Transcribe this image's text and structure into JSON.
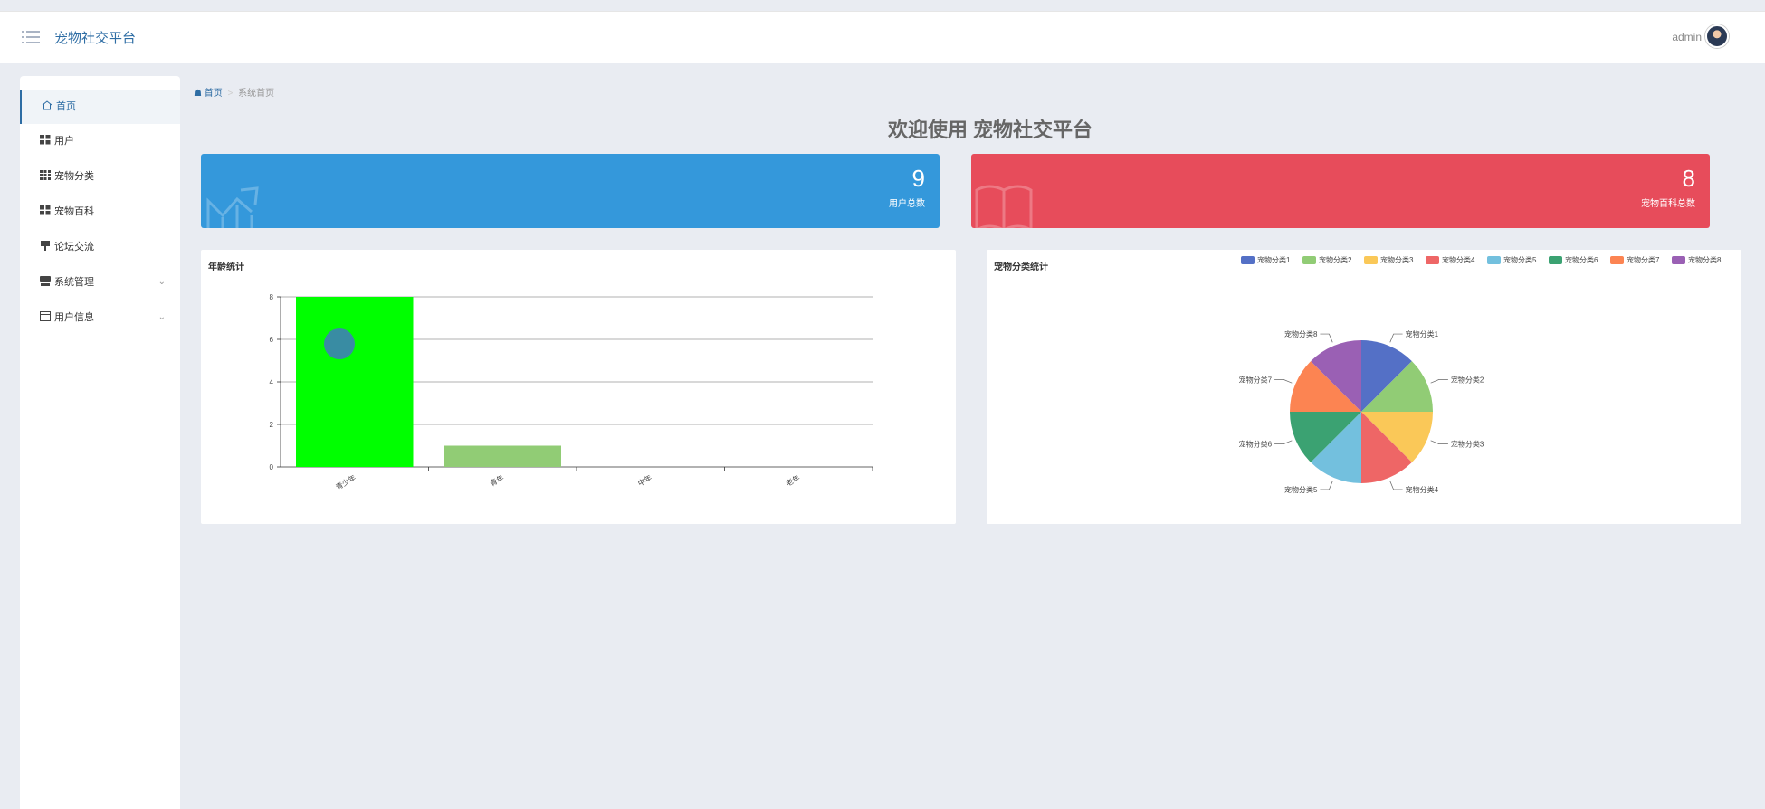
{
  "header": {
    "title": "宠物社交平台",
    "user": "admin"
  },
  "sidebar": {
    "items": [
      {
        "label": "首页",
        "icon": "home-icon",
        "active": true,
        "expandable": false
      },
      {
        "label": "用户",
        "icon": "grid-icon",
        "active": false,
        "expandable": false
      },
      {
        "label": "宠物分类",
        "icon": "grid-icon",
        "active": false,
        "expandable": false
      },
      {
        "label": "宠物百科",
        "icon": "grid-icon",
        "active": false,
        "expandable": false
      },
      {
        "label": "论坛交流",
        "icon": "forum-icon",
        "active": false,
        "expandable": false
      },
      {
        "label": "系统管理",
        "icon": "system-icon",
        "active": false,
        "expandable": true
      },
      {
        "label": "用户信息",
        "icon": "user-info-icon",
        "active": false,
        "expandable": true
      }
    ]
  },
  "breadcrumb": {
    "home": "首页",
    "separator": ">",
    "current": "系统首页"
  },
  "welcome": "欢迎使用 宠物社交平台",
  "stats": [
    {
      "value": "9",
      "label": "用户总数",
      "color": "#3498db",
      "icon": "chart-icon"
    },
    {
      "value": "8",
      "label": "宠物百科总数",
      "color": "#e74c5b",
      "icon": "book-icon"
    }
  ],
  "chart_data": [
    {
      "type": "bar",
      "title": "年龄统计",
      "categories": [
        "青少年",
        "青年",
        "中年",
        "老年"
      ],
      "values": [
        8,
        1,
        0,
        0
      ],
      "colors": [
        "#00ff00",
        "#91cc75",
        "#91cc75",
        "#91cc75"
      ],
      "ylim": [
        0,
        8
      ],
      "yticks": [
        0,
        2,
        4,
        6,
        8
      ],
      "grid": true
    },
    {
      "type": "pie",
      "title": "宠物分类统计",
      "categories": [
        "宠物分类1",
        "宠物分类2",
        "宠物分类3",
        "宠物分类4",
        "宠物分类5",
        "宠物分类6",
        "宠物分类7",
        "宠物分类8"
      ],
      "values": [
        1,
        1,
        1,
        1,
        1,
        1,
        1,
        1
      ],
      "colors": [
        "#5470c6",
        "#91cc75",
        "#fac858",
        "#ee6666",
        "#73c0de",
        "#3ba272",
        "#fc8452",
        "#9a60b4"
      ],
      "legend": "top-right"
    }
  ]
}
